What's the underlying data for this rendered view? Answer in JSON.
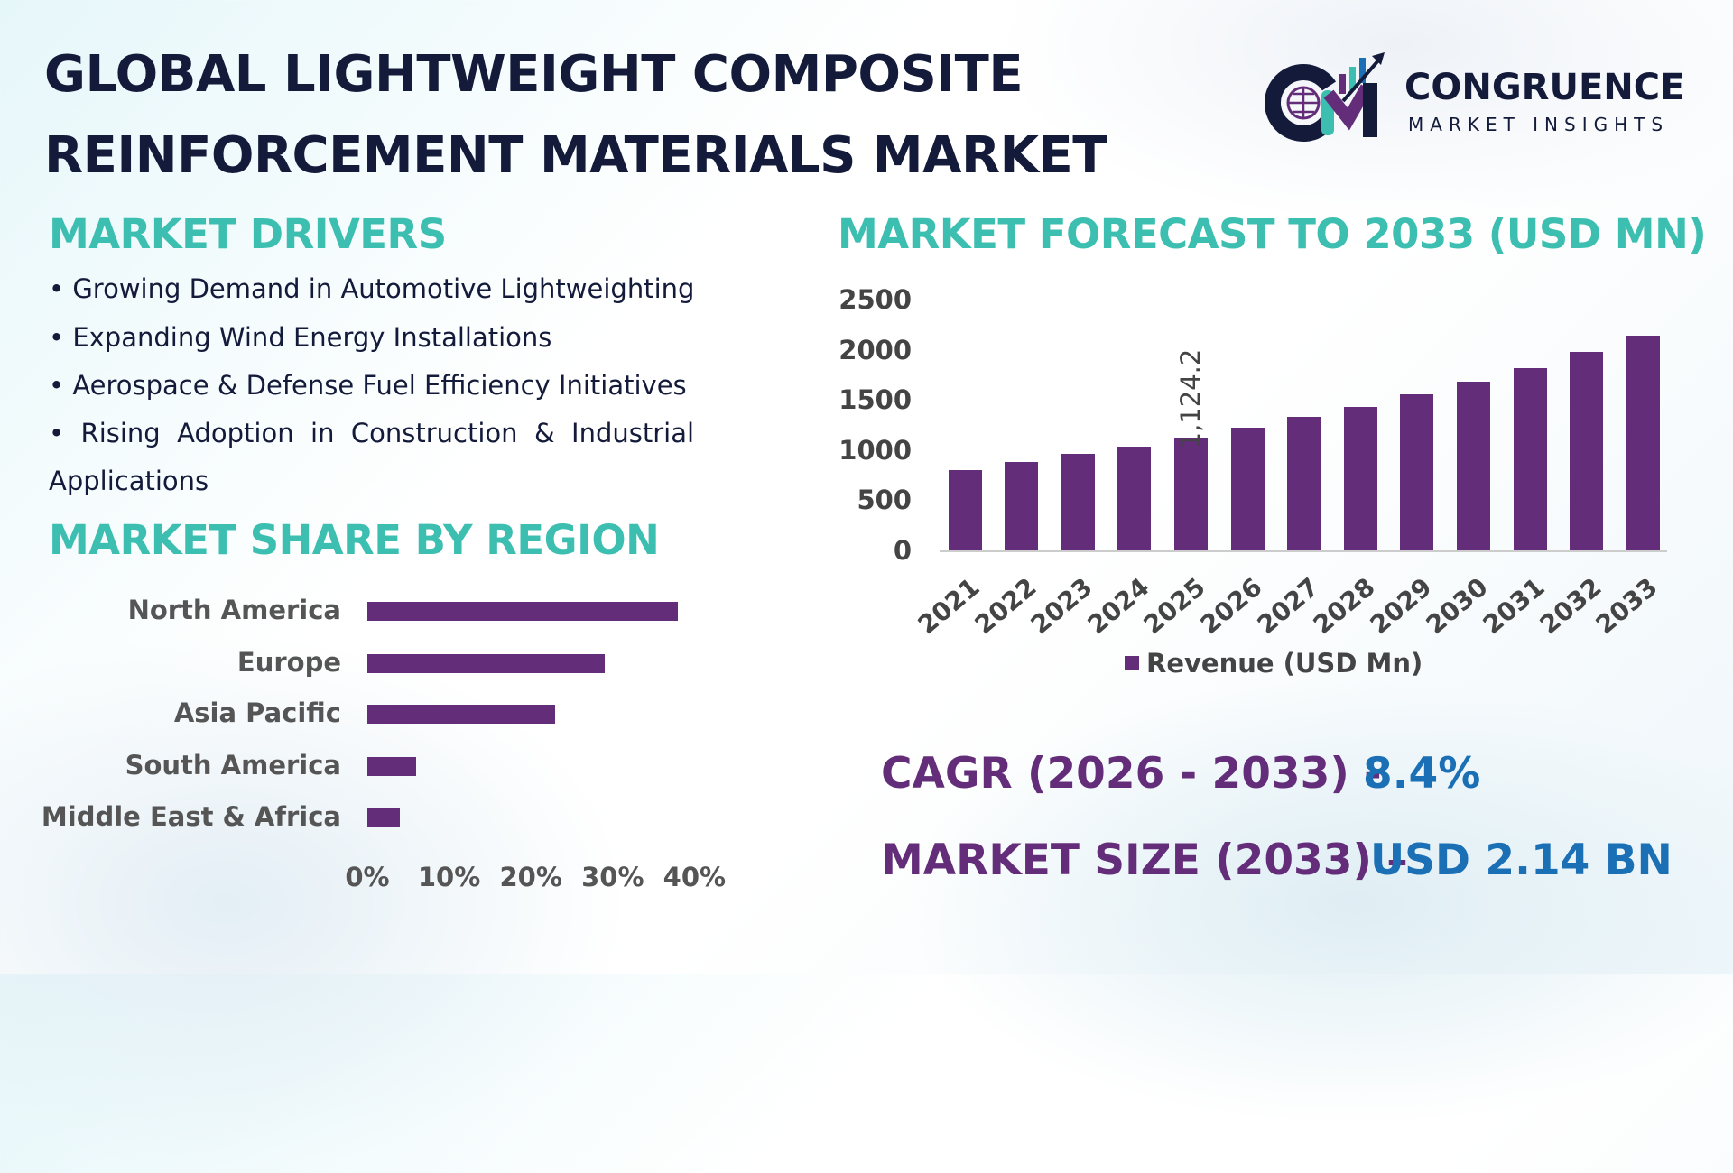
{
  "title_line1": "GLOBAL LIGHTWEIGHT COMPOSITE",
  "title_line2": "REINFORCEMENT MATERIALS MARKET",
  "logo": {
    "name": "CONGRUENCE",
    "tagline": "MARKET INSIGHTS",
    "letters": "CM"
  },
  "drivers": {
    "heading": "MARKET DRIVERS",
    "items": [
      "• Growing Demand in Automotive Lightweighting",
      "• Expanding Wind Energy Installations",
      "• Aerospace & Defense Fuel Efficiency Initiatives",
      "•  Rising  Adoption  in  Construction  &  Industrial",
      "Applications"
    ]
  },
  "region_heading": "MARKET SHARE BY REGION",
  "forecast_heading": "MARKET FORECAST TO 2033 (USD MN)",
  "cagr": {
    "label": "CAGR (2026 - 2033) -",
    "value": "8.4%"
  },
  "market_size": {
    "label": "MARKET SIZE (2033) –",
    "value": "USD 2.14 BN"
  },
  "colors": {
    "bar": "#632d7a",
    "heading": "#3cbfb0",
    "value": "#1a6fb5",
    "title": "#141b3a"
  },
  "chart_data": [
    {
      "type": "bar",
      "orientation": "vertical",
      "categories": [
        "2021",
        "2022",
        "2023",
        "2024",
        "2025",
        "2026",
        "2027",
        "2028",
        "2029",
        "2030",
        "2031",
        "2032",
        "2033"
      ],
      "series": [
        {
          "name": "Revenue (USD Mn)",
          "values": [
            804,
            881,
            958,
            1035,
            1124.2,
            1222,
            1333,
            1432,
            1553,
            1685,
            1817,
            1982,
            2140
          ]
        }
      ],
      "data_labels": [
        {
          "category": "2025",
          "text": "1,124.2"
        }
      ],
      "yticks": [
        "0",
        "500",
        "1000",
        "1500",
        "2000",
        "2500"
      ],
      "ylim": [
        0,
        2500
      ],
      "grid": false,
      "legend": "bottom"
    },
    {
      "type": "bar",
      "orientation": "horizontal",
      "categories": [
        "North America",
        "Europe",
        "Asia Pacific",
        "South America",
        "Middle East & Africa"
      ],
      "values": [
        38,
        29,
        23,
        6,
        4
      ],
      "unit": "%",
      "xticks": [
        "0%",
        "10%",
        "20%",
        "30%",
        "40%"
      ],
      "xlim": [
        0,
        40
      ],
      "grid": false
    }
  ]
}
